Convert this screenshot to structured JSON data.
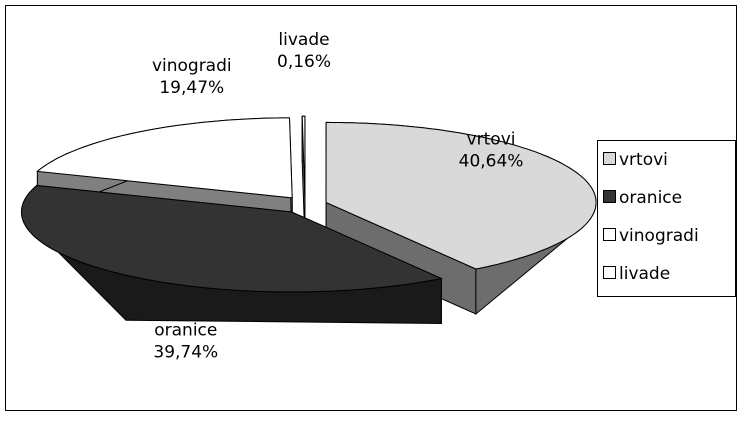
{
  "chart_data": {
    "type": "pie3d",
    "categories": [
      "vrtovi",
      "oranice",
      "vinogradi",
      "livade"
    ],
    "values": [
      40.64,
      39.74,
      19.47,
      0.16
    ],
    "value_labels": [
      "40,64%",
      "39,74%",
      "19,47%",
      "0,16%"
    ],
    "colors": [
      "#d9d9d9",
      "#333333",
      "#ffffff",
      "#ffffff"
    ],
    "legend": "right"
  }
}
